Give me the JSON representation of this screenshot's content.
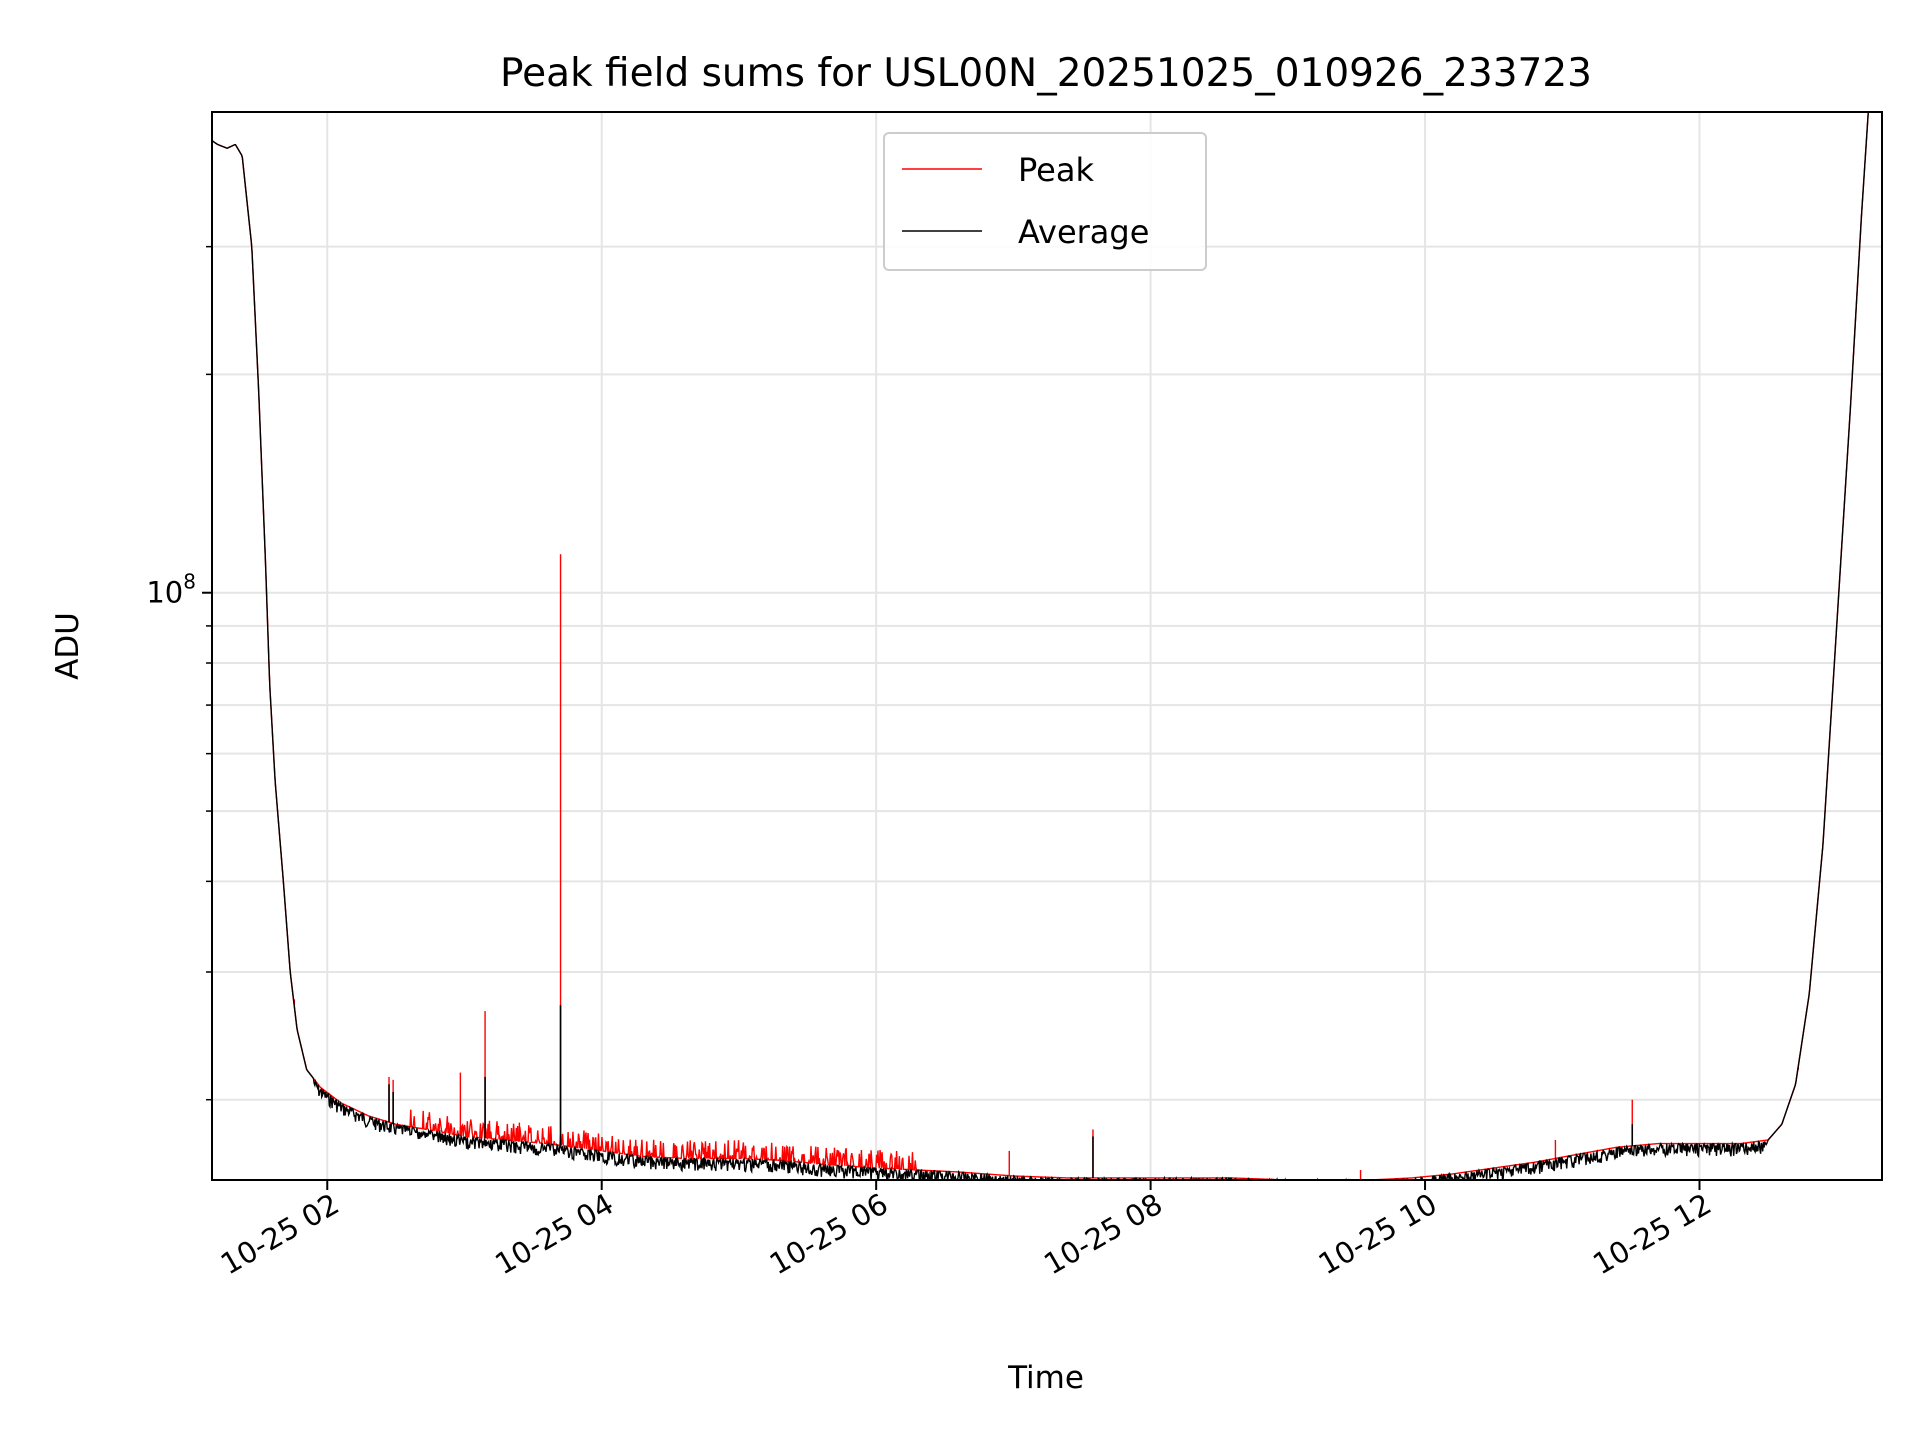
{
  "chart_data": {
    "type": "line",
    "title": "Peak field sums for USL00N_20251025_010926_233723",
    "xlabel": "Time",
    "ylabel": "ADU",
    "yscale": "log",
    "grid": true,
    "legend_position": "upper-center",
    "x_unit": "hours since 10-25 00:00",
    "xlim": [
      1.16,
      13.33
    ],
    "ylim": [
      15500000.0,
      460000000.0
    ],
    "x_ticks": [
      2,
      4,
      6,
      8,
      10,
      12
    ],
    "x_tick_labels": [
      "10-25 02",
      "10-25 04",
      "10-25 06",
      "10-25 08",
      "10-25 10",
      "10-25 12"
    ],
    "y_major_ticks": [
      100000000
    ],
    "y_major_tick_base": "10",
    "y_major_tick_exp": "8",
    "y_minor_ticks": [
      20000000,
      30000000,
      40000000,
      50000000,
      60000000,
      70000000,
      80000000,
      90000000,
      200000000,
      300000000
    ],
    "series": [
      {
        "name": "Peak",
        "color": "#ff0000"
      },
      {
        "name": "Average",
        "color": "#000000"
      }
    ],
    "average_curve": [
      [
        1.16,
        420000000.0
      ],
      [
        1.2,
        415000000.0
      ],
      [
        1.27,
        410000000.0
      ],
      [
        1.33,
        415000000.0
      ],
      [
        1.38,
        400000000.0
      ],
      [
        1.45,
        300000000.0
      ],
      [
        1.5,
        190000000.0
      ],
      [
        1.55,
        110000000.0
      ],
      [
        1.58,
        75000000.0
      ],
      [
        1.62,
        55000000.0
      ],
      [
        1.68,
        40000000.0
      ],
      [
        1.73,
        30000000.0
      ],
      [
        1.78,
        25000000.0
      ],
      [
        1.85,
        22000000.0
      ],
      [
        1.95,
        20800000.0
      ],
      [
        2.1,
        19800000.0
      ],
      [
        2.3,
        19000000.0
      ],
      [
        2.5,
        18500000.0
      ],
      [
        2.8,
        18100000.0
      ],
      [
        3.0,
        17800000.0
      ],
      [
        3.3,
        17600000.0
      ],
      [
        3.6,
        17400000.0
      ],
      [
        4.0,
        17000000.0
      ],
      [
        4.3,
        16700000.0
      ],
      [
        4.6,
        16600000.0
      ],
      [
        5.0,
        16600000.0
      ],
      [
        5.3,
        16500000.0
      ],
      [
        5.6,
        16300000.0
      ],
      [
        6.0,
        16100000.0
      ],
      [
        6.3,
        16000000.0
      ],
      [
        6.6,
        15900000.0
      ],
      [
        7.0,
        15700000.0
      ],
      [
        7.4,
        15600000.0
      ],
      [
        7.8,
        15600000.0
      ],
      [
        8.2,
        15600000.0
      ],
      [
        8.6,
        15600000.0
      ],
      [
        9.0,
        15500000.0
      ],
      [
        9.3,
        15500000.0
      ],
      [
        9.6,
        15500000.0
      ],
      [
        9.9,
        15600000.0
      ],
      [
        10.2,
        15800000.0
      ],
      [
        10.5,
        16100000.0
      ],
      [
        10.8,
        16400000.0
      ],
      [
        11.1,
        16800000.0
      ],
      [
        11.4,
        17200000.0
      ],
      [
        11.7,
        17400000.0
      ],
      [
        12.0,
        17400000.0
      ],
      [
        12.3,
        17400000.0
      ],
      [
        12.5,
        17600000.0
      ],
      [
        12.6,
        18500000.0
      ],
      [
        12.7,
        21000000.0
      ],
      [
        12.8,
        28000000.0
      ],
      [
        12.9,
        45000000.0
      ],
      [
        13.0,
        90000000.0
      ],
      [
        13.1,
        180000000.0
      ],
      [
        13.18,
        330000000.0
      ],
      [
        13.23,
        460000000.0
      ]
    ],
    "noise_band": {
      "x_start": 1.9,
      "x_end": 12.5,
      "relative_depth": 0.04
    },
    "peak_spikes": [
      {
        "x": 1.76,
        "y": 27500000.0
      },
      {
        "x": 1.96,
        "y": 20500000.0
      },
      {
        "x": 2.1,
        "y": 19500000.0
      },
      {
        "x": 2.45,
        "y": 21500000.0
      },
      {
        "x": 2.48,
        "y": 21300000.0
      },
      {
        "x": 2.97,
        "y": 21800000.0
      },
      {
        "x": 3.15,
        "y": 26500000.0
      },
      {
        "x": 3.4,
        "y": 18600000.0
      },
      {
        "x": 3.7,
        "y": 113000000.0
      },
      {
        "x": 6.97,
        "y": 17000000.0
      },
      {
        "x": 7.58,
        "y": 18200000.0
      },
      {
        "x": 9.53,
        "y": 16000000.0
      },
      {
        "x": 10.95,
        "y": 17600000.0
      },
      {
        "x": 11.51,
        "y": 20000000.0
      },
      {
        "x": 12.72,
        "y": 22000000.0
      }
    ],
    "average_spikes": [
      {
        "x": 2.45,
        "y": 21000000.0
      },
      {
        "x": 2.48,
        "y": 20500000.0
      },
      {
        "x": 3.15,
        "y": 21500000.0
      },
      {
        "x": 3.7,
        "y": 27000000.0
      },
      {
        "x": 7.58,
        "y": 17800000.0
      },
      {
        "x": 11.51,
        "y": 18500000.0
      }
    ],
    "peak_fringe": {
      "x_start": 2.6,
      "x_end": 6.3,
      "relative_height": 0.06
    }
  }
}
